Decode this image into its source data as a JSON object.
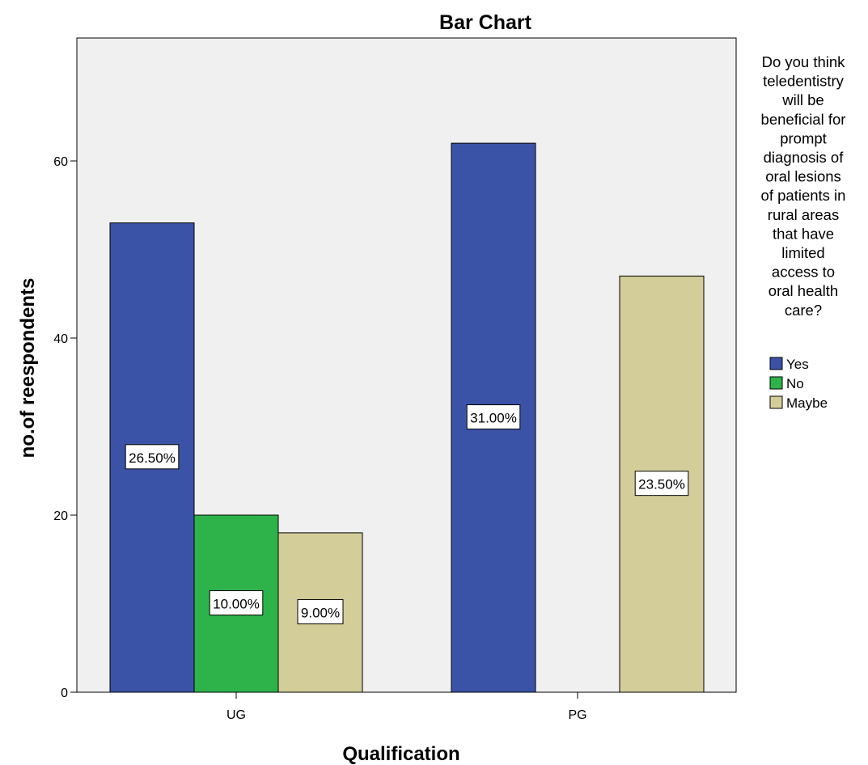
{
  "chart_data": {
    "type": "bar",
    "title": "Bar Chart",
    "xlabel": "Qualification",
    "ylabel": "no.of reespondents",
    "categories": [
      "UG",
      "PG"
    ],
    "ylim": [
      0,
      75
    ],
    "yticks": [
      0,
      20,
      40,
      60
    ],
    "grid": false,
    "legend_position": "right",
    "legend_title_lines": [
      "Do you think",
      "teledentistry",
      "will be",
      "beneficial for",
      "prompt",
      "diagnosis  of",
      "oral lesions",
      "of patients in",
      "rural  areas",
      "that have",
      "limited",
      "access to",
      "oral health",
      "care?"
    ],
    "series": [
      {
        "name": "Yes",
        "color": "#3b53a6",
        "values": [
          53,
          62
        ],
        "labels": [
          "26.50%",
          "31.00%"
        ]
      },
      {
        "name": "No",
        "color": "#2db34a",
        "values": [
          20,
          0
        ],
        "labels": [
          "10.00%",
          ""
        ]
      },
      {
        "name": "Maybe",
        "color": "#d3ce99",
        "values": [
          18,
          47
        ],
        "labels": [
          "9.00%",
          "23.50%"
        ]
      }
    ]
  }
}
